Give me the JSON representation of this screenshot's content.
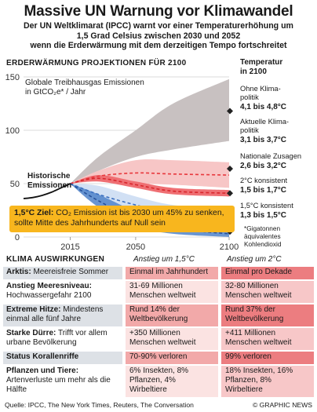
{
  "title": "Massive UN Warnung vor Klimawandel",
  "subtitle_lines": [
    "Der UN Weltklimarat (IPCC) warnt vor einer Temperaturerhöhung um",
    "1,5 Grad Celsius zwischen 2030 und 2052",
    "wenn die Erderwärmung mit dem derzeitigen Tempo fortschreitet"
  ],
  "section_label": "ERDERWÄRMUNG PROJEKTIONEN FÜR 2100",
  "temperature_heading": [
    "Temperatur",
    "in 2100"
  ],
  "ghg_label": [
    "Globale Treibhausgas Emissionen",
    "in GtCO₂e* / Jahr"
  ],
  "historic_label": [
    "Historische",
    "Emissionen"
  ],
  "goal_box": {
    "bold": "1,5°C Ziel:",
    "text": " CO₂ Emission ist bis 2030 um 45% zu senken, sollte Mitte des Jahrhunderts auf Null sein"
  },
  "footnote": [
    "*Gigatonnen",
    "äquivalentes",
    "Kohlendioxid"
  ],
  "chart_data": {
    "type": "area",
    "title": "Erderwärmung Projektionen für 2100",
    "ylabel": "Globale Treibhausgas Emissionen in GtCO2e* / Jahr",
    "xlim": [
      1990,
      2100
    ],
    "ylim": [
      0,
      150
    ],
    "x_ticks": [
      2015,
      2050,
      2100
    ],
    "y_ticks": [
      0,
      50,
      100,
      150
    ],
    "grid": true,
    "historic": {
      "name": "Historische Emissionen",
      "x": [
        1990,
        1995,
        2000,
        2005,
        2010,
        2015
      ],
      "y": [
        36,
        37,
        39,
        42,
        46,
        50
      ]
    },
    "series": [
      {
        "name": "Ohne Klimapolitik",
        "temperature": "4,1 bis 4,8°C",
        "color": "#c8c1c1",
        "x": [
          2015,
          2030,
          2050,
          2070,
          2100
        ],
        "low": [
          50,
          62,
          75,
          82,
          90
        ],
        "high": [
          50,
          75,
          100,
          125,
          148
        ],
        "line": null
      },
      {
        "name": "Aktuelle Klimapolitik",
        "temperature": "3,1 bis 3,7°C",
        "color": "#f7c6c6",
        "x": [
          2015,
          2030,
          2050,
          2070,
          2100
        ],
        "low": [
          50,
          52,
          50,
          49,
          46
        ],
        "high": [
          50,
          62,
          72,
          72,
          70
        ],
        "line": [
          50,
          57,
          60,
          59,
          58
        ]
      },
      {
        "name": "Nationale Zusagen",
        "temperature": "2,6 bis 3,2°C",
        "color": "#ef6f73",
        "x": [
          2015,
          2030,
          2050,
          2070,
          2100
        ],
        "low": [
          50,
          52,
          46,
          40,
          38
        ],
        "high": [
          50,
          58,
          52,
          46,
          44
        ],
        "line": [
          50,
          55,
          49,
          43,
          41
        ]
      },
      {
        "name": "2°C konsistent",
        "temperature": "1,5 bis 1,7°C",
        "color": "#c9daf2",
        "x": [
          2015,
          2030,
          2050,
          2070,
          2100
        ],
        "low": [
          50,
          34,
          22,
          15,
          10
        ],
        "high": [
          50,
          48,
          38,
          30,
          26
        ],
        "line": [
          50,
          40,
          30,
          22,
          18
        ]
      },
      {
        "name": "1,5°C konsistent",
        "temperature": "1,3 bis 1,5°C",
        "color": "#4f83c9",
        "x": [
          2015,
          2030,
          2050,
          2070,
          2100
        ],
        "low": [
          50,
          28,
          10,
          3,
          0
        ],
        "high": [
          50,
          40,
          24,
          14,
          8
        ],
        "line": [
          50,
          34,
          17,
          8,
          3
        ]
      }
    ]
  },
  "impacts": {
    "header": [
      "KLIMA AUSWIRKUNGEN",
      "Anstieg um 1,5°C",
      "Anstieg um 2°C"
    ],
    "rows": [
      {
        "cat": "Arktis:",
        "desc": " Meereisfreie Sommer",
        "v15": "Einmal im Jahrhundert",
        "v2": "Einmal pro Dekade"
      },
      {
        "cat": "Anstieg Meeresniveau:",
        "desc": " Hochwassergefahr 2100",
        "v15": "31-69 Millionen Menschen weltweit",
        "v2": "32-80 Millionen Menschen weltweit"
      },
      {
        "cat": "Extreme Hitze:",
        "desc": " Mindestens einmal alle fünf Jahre",
        "v15": "Rund 14% der Weltbevölkerung",
        "v2": "Rund 37% der Weltbevölkerung"
      },
      {
        "cat": "Starke Dürre:",
        "desc": " Trifft vor allem urbane Bevölkerung",
        "v15": "+350 Millionen Menschen weltweit",
        "v2": "+411 Millionen Menschen weltweit"
      },
      {
        "cat": "Status Korallenriffe",
        "desc": "",
        "v15": "70-90% verloren",
        "v2": "99% verloren"
      },
      {
        "cat": "Pflanzen und Tiere:",
        "desc": " Artenverluste um mehr als die Hälfte",
        "v15": "6% Insekten, 8% Pflanzen, 4% Wirbeltiere",
        "v2": "18% Insekten, 16% Pflanzen, 8% Wirbeltiere"
      }
    ]
  },
  "source": "Quelle: IPCC, The New York Times, Reuters, The Conversation",
  "credit": "© GRAPHIC NEWS"
}
